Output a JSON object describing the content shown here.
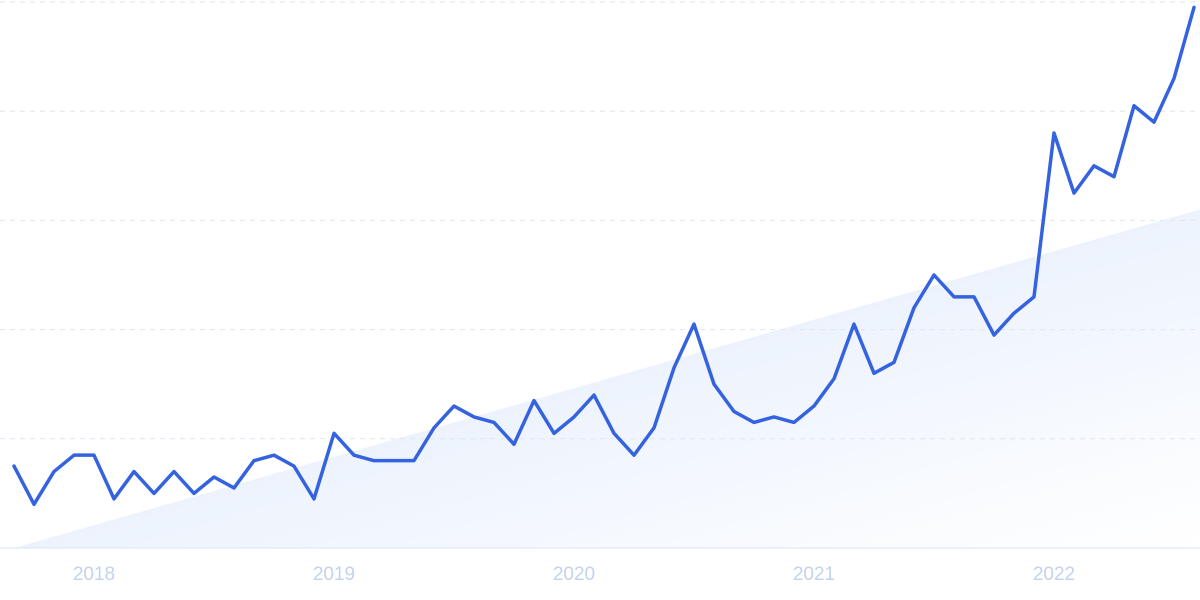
{
  "chart_data": {
    "type": "line",
    "categories": [
      null,
      null,
      null,
      null,
      "2018",
      null,
      null,
      null,
      null,
      null,
      null,
      null,
      null,
      null,
      null,
      null,
      "2019",
      null,
      null,
      null,
      null,
      null,
      null,
      null,
      null,
      null,
      null,
      null,
      "2020",
      null,
      null,
      null,
      null,
      null,
      null,
      null,
      null,
      null,
      null,
      null,
      "2021",
      null,
      null,
      null,
      null,
      null,
      null,
      null,
      null,
      null,
      null,
      null,
      "2022",
      null,
      null,
      null,
      null,
      null,
      null,
      null
    ],
    "series": [
      {
        "color": "#3563e0",
        "values": [
          15,
          8,
          14,
          17,
          17,
          9,
          14,
          10,
          14,
          10,
          13,
          11,
          16,
          17,
          15,
          9,
          21,
          17,
          16,
          16,
          16,
          22,
          26,
          24,
          23,
          19,
          27,
          21,
          24,
          28,
          21,
          17,
          22,
          33,
          41,
          30,
          25,
          23,
          24,
          23,
          26,
          31,
          41,
          32,
          34,
          44,
          50,
          46,
          46,
          39,
          43,
          46,
          76,
          65,
          70,
          68,
          81,
          78,
          86,
          99
        ]
      }
    ],
    "trend": {
      "values": [
        0,
        62
      ],
      "color": "#dbe7fb"
    },
    "ylim": [
      0,
      100
    ],
    "yticks": [
      0,
      20,
      40,
      60,
      80,
      100
    ],
    "grid": true
  }
}
